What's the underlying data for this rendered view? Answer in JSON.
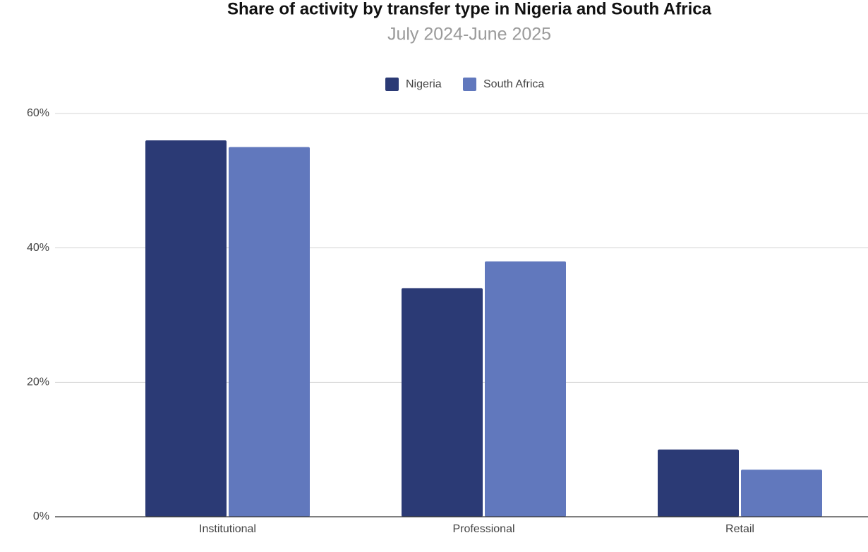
{
  "chart_data": {
    "type": "bar",
    "title": "Share of activity by transfer type in Nigeria and South Africa",
    "subtitle": "July 2024-June 2025",
    "categories": [
      "Institutional",
      "Professional",
      "Retail"
    ],
    "series": [
      {
        "name": "Nigeria",
        "color": "#2b3a75",
        "values": [
          56,
          34,
          10
        ]
      },
      {
        "name": "South Africa",
        "color": "#6178bd",
        "values": [
          55,
          38,
          7
        ]
      }
    ],
    "ylim": [
      0,
      60
    ],
    "yticks": [
      {
        "value": 0,
        "label": "0%"
      },
      {
        "value": 20,
        "label": "20%"
      },
      {
        "value": 40,
        "label": "40%"
      },
      {
        "value": 60,
        "label": "60%"
      }
    ],
    "grid": true,
    "legend": "top"
  }
}
